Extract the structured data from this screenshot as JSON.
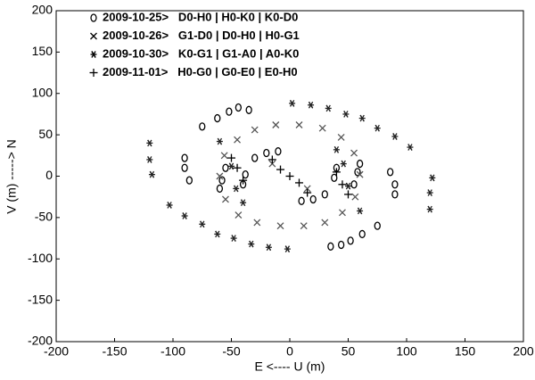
{
  "chart_data": {
    "type": "scatter",
    "xlabel": "E <---- U (m)",
    "ylabel": "V (m) -----> N",
    "xlim": [
      -200,
      200
    ],
    "ylim": [
      -200,
      200
    ],
    "xticks": [
      -200,
      -150,
      -100,
      -50,
      0,
      50,
      100,
      150,
      200
    ],
    "yticks": [
      -200,
      -150,
      -100,
      -50,
      0,
      50,
      100,
      150,
      200
    ],
    "legend": "upper left",
    "series": [
      {
        "name": "2009-10-25>   D0-H0 | H0-K0 | K0-D0",
        "marker": "o",
        "color": "#000000",
        "x": [
          -75,
          -62,
          -52,
          -44,
          -35,
          -90,
          -90,
          -86,
          -30,
          -20,
          -10,
          -38,
          -40,
          -60,
          -58,
          -55,
          75,
          62,
          52,
          44,
          35,
          90,
          90,
          86,
          30,
          20,
          10,
          38,
          40,
          60,
          58,
          55
        ],
        "y": [
          60,
          70,
          78,
          83,
          80,
          22,
          10,
          -5,
          22,
          28,
          30,
          2,
          -10,
          -15,
          -5,
          10,
          -60,
          -70,
          -78,
          -83,
          -85,
          -22,
          -10,
          5,
          -22,
          -28,
          -30,
          -2,
          10,
          15,
          5,
          -10
        ]
      },
      {
        "name": "2009-10-26>   G1-D0 | D0-H0 | H0-G1",
        "marker": "x",
        "color": "#555555",
        "x": [
          -60,
          -56,
          -45,
          -30,
          -12,
          8,
          28,
          44,
          55,
          60,
          56,
          45,
          30,
          12,
          -8,
          -28,
          -44,
          -55,
          -15,
          15
        ],
        "y": [
          0,
          25,
          44,
          56,
          62,
          62,
          58,
          47,
          28,
          2,
          -25,
          -44,
          -56,
          -60,
          -60,
          -56,
          -47,
          -28,
          15,
          -15
        ]
      },
      {
        "name": "2009-10-30>   K0-G1 | G1-A0 | A0-K0",
        "marker": "*",
        "color": "#222222",
        "x": [
          -120,
          -120,
          -118,
          -103,
          -90,
          -75,
          -62,
          -48,
          -33,
          -18,
          -2,
          120,
          120,
          122,
          103,
          90,
          75,
          62,
          48,
          33,
          18,
          2,
          -50,
          -46,
          -40,
          50,
          46,
          40,
          -60,
          60
        ],
        "y": [
          40,
          20,
          2,
          -35,
          -48,
          -58,
          -70,
          -75,
          -82,
          -86,
          -88,
          -40,
          -20,
          -2,
          35,
          48,
          58,
          70,
          75,
          82,
          86,
          88,
          12,
          -15,
          -32,
          -12,
          15,
          32,
          42,
          -42
        ]
      },
      {
        "name": "2009-11-01>   H0-G0 | G0-E0 | E0-H0",
        "marker": "+",
        "color": "#000000",
        "x": [
          -50,
          -45,
          -40,
          -15,
          0,
          15,
          40,
          45,
          50,
          -8,
          8
        ],
        "y": [
          22,
          10,
          -5,
          20,
          0,
          -20,
          5,
          -10,
          -22,
          8,
          -8
        ]
      }
    ]
  }
}
